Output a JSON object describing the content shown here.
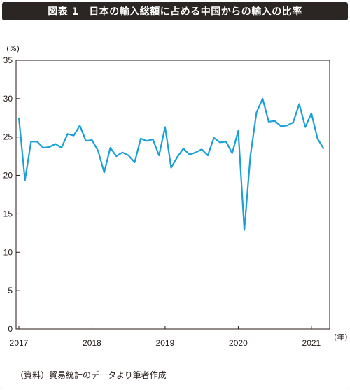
{
  "header": {
    "title": "図表 1　日本の輸入総額に占める中国からの輸入の比率"
  },
  "footer": {
    "source": "（資料）貿易統計のデータより筆者作成"
  },
  "colors": {
    "line": "#1a9fd6",
    "axis": "#231815",
    "title_bg": "#2b2523"
  },
  "chart_data": {
    "type": "line",
    "title": "図表 1　日本の輸入総額に占める中国からの輸入の比率",
    "y_unit": "(%)",
    "x_unit": "(年)",
    "ylim": [
      0,
      35
    ],
    "y_ticks": [
      0,
      5,
      10,
      15,
      20,
      25,
      30,
      35
    ],
    "x_ticks": [
      "2017",
      "2018",
      "2019",
      "2020",
      "2021"
    ],
    "xlim_months": [
      "2017-01",
      "2021-04"
    ],
    "grid": false,
    "series": [
      {
        "points": [
          [
            "2017-01",
            27.5
          ],
          [
            "2017-02",
            19.4
          ],
          [
            "2017-03",
            24.4
          ],
          [
            "2017-04",
            24.4
          ],
          [
            "2017-05",
            23.6
          ],
          [
            "2017-06",
            23.7
          ],
          [
            "2017-07",
            24.1
          ],
          [
            "2017-08",
            23.6
          ],
          [
            "2017-09",
            25.4
          ],
          [
            "2017-10",
            25.2
          ],
          [
            "2017-11",
            26.5
          ],
          [
            "2017-12",
            24.5
          ],
          [
            "2018-01",
            24.6
          ],
          [
            "2018-02",
            23.2
          ],
          [
            "2018-03",
            20.4
          ],
          [
            "2018-04",
            23.6
          ],
          [
            "2018-05",
            22.5
          ],
          [
            "2018-06",
            23.0
          ],
          [
            "2018-07",
            22.6
          ],
          [
            "2018-08",
            21.7
          ],
          [
            "2018-09",
            24.8
          ],
          [
            "2018-10",
            24.5
          ],
          [
            "2018-11",
            24.7
          ],
          [
            "2018-12",
            22.6
          ],
          [
            "2019-01",
            26.3
          ],
          [
            "2019-02",
            21.0
          ],
          [
            "2019-03",
            22.4
          ],
          [
            "2019-04",
            23.5
          ],
          [
            "2019-05",
            22.7
          ],
          [
            "2019-06",
            23.0
          ],
          [
            "2019-07",
            23.4
          ],
          [
            "2019-08",
            22.6
          ],
          [
            "2019-09",
            24.9
          ],
          [
            "2019-10",
            24.3
          ],
          [
            "2019-11",
            24.4
          ],
          [
            "2019-12",
            22.9
          ],
          [
            "2020-01",
            25.8
          ],
          [
            "2020-02",
            12.9
          ],
          [
            "2020-03",
            22.6
          ],
          [
            "2020-04",
            28.2
          ],
          [
            "2020-05",
            30.0
          ],
          [
            "2020-06",
            27.0
          ],
          [
            "2020-07",
            27.1
          ],
          [
            "2020-08",
            26.4
          ],
          [
            "2020-09",
            26.5
          ],
          [
            "2020-10",
            26.9
          ],
          [
            "2020-11",
            29.3
          ],
          [
            "2020-12",
            26.3
          ],
          [
            "2021-01",
            28.1
          ],
          [
            "2021-02",
            24.8
          ],
          [
            "2021-03",
            23.5
          ]
        ]
      }
    ]
  }
}
